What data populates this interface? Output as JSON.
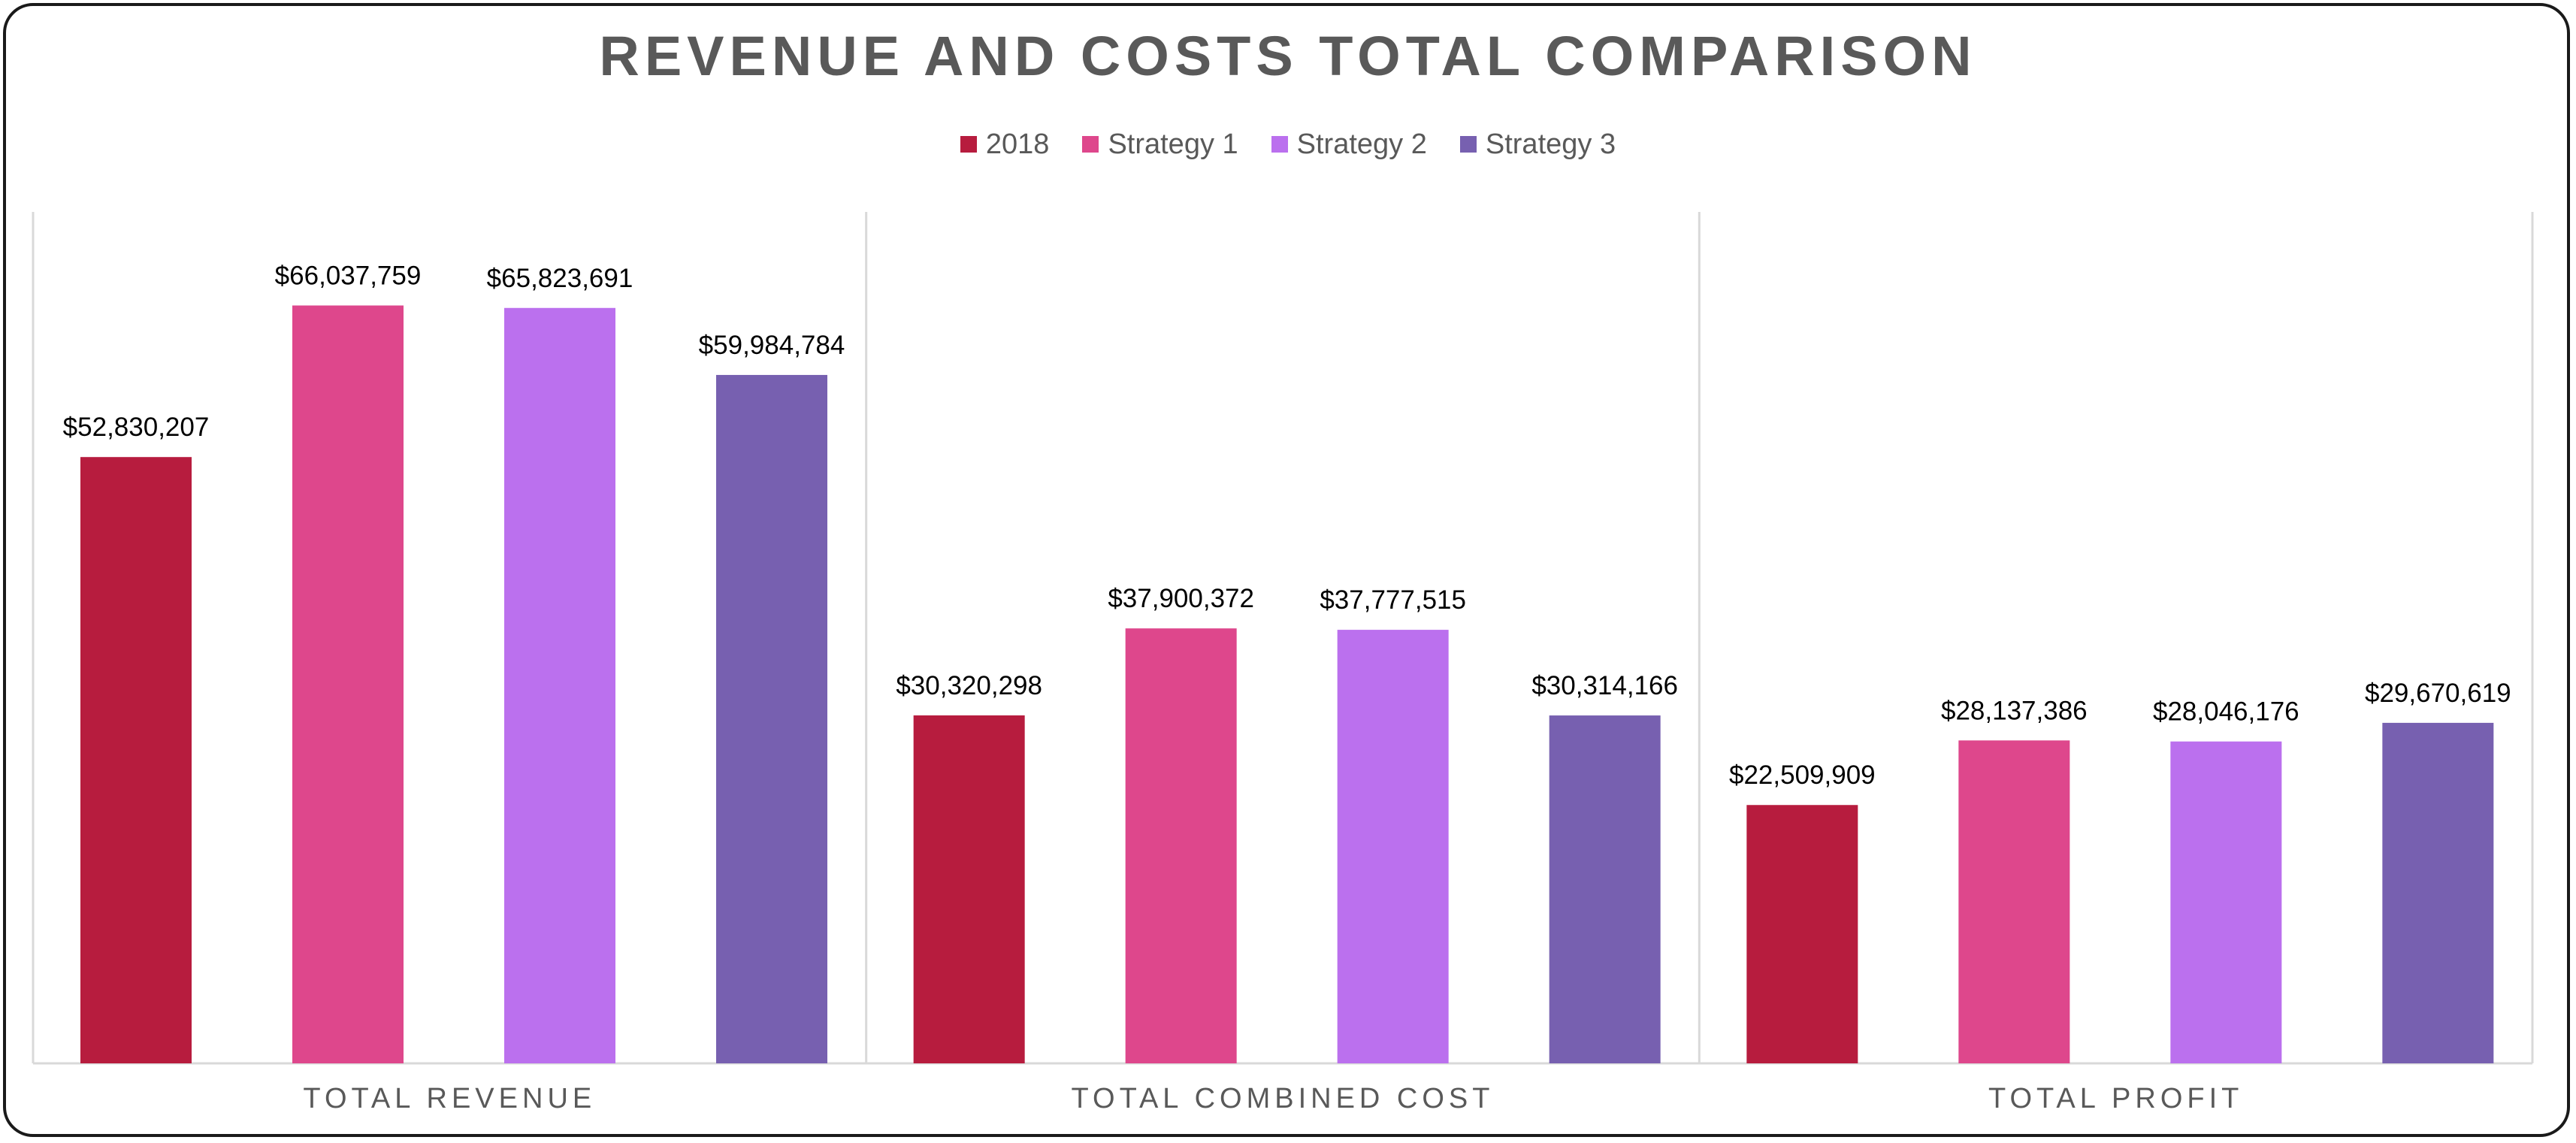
{
  "chart_data": {
    "type": "bar",
    "title": "REVENUE AND COSTS TOTAL COMPARISON",
    "categories": [
      "TOTAL REVENUE",
      "TOTAL COMBINED COST",
      "TOTAL PROFIT"
    ],
    "series": [
      {
        "name": "2018",
        "color": "#B71C3E",
        "values": [
          52830207,
          30320298,
          22509909
        ],
        "labels": [
          "$52,830,207",
          "$30,320,298",
          "$22,509,909"
        ]
      },
      {
        "name": "Strategy 1",
        "color": "#DE478C",
        "values": [
          66037759,
          37900372,
          28137386
        ],
        "labels": [
          "$66,037,759",
          "$37,900,372",
          "$28,137,386"
        ]
      },
      {
        "name": "Strategy 2",
        "color": "#BB70EE",
        "values": [
          65823691,
          37777515,
          28046176
        ],
        "labels": [
          "$65,823,691",
          "$37,777,515",
          "$28,046,176"
        ]
      },
      {
        "name": "Strategy 3",
        "color": "#7760B0",
        "values": [
          59984784,
          30314166,
          29670619
        ],
        "labels": [
          "$59,984,784",
          "$30,314,166",
          "$29,670,619"
        ]
      }
    ],
    "ylim": [
      0,
      70000000
    ],
    "grid": false,
    "legend_position": "top"
  }
}
